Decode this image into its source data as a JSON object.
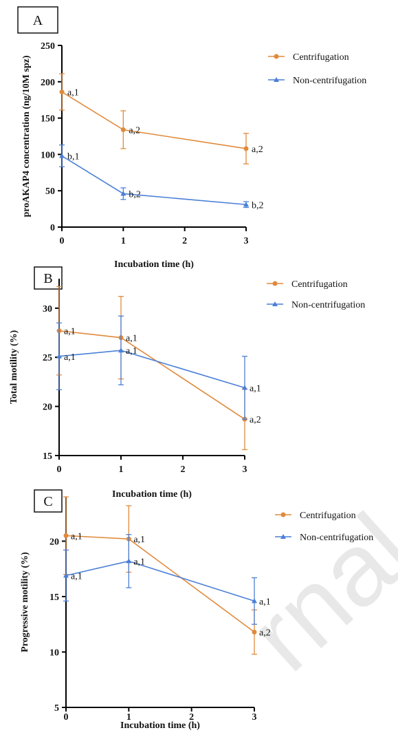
{
  "page": {
    "watermark": "rnal P"
  },
  "colors": {
    "centrifugation": "#e08a3c",
    "non_centrifugation": "#4a7fd6",
    "axis": "#000000"
  },
  "chart_data": [
    {
      "type": "line",
      "panel_label": "A",
      "xlabel": "Incubation time (h)",
      "ylabel": "proAKAP4 concentration (ng/10M spz)",
      "x": [
        0,
        1,
        3
      ],
      "xticks": [
        0,
        1,
        2,
        3
      ],
      "xlim": [
        0,
        3
      ],
      "yticks": [
        0,
        50,
        100,
        150,
        200,
        250
      ],
      "ylim": [
        0,
        250
      ],
      "legend": "top-right",
      "series": [
        {
          "name": "Centrifugation",
          "color": "#e08a3c",
          "marker": "circle",
          "values": [
            186,
            134,
            108
          ],
          "errors": [
            25,
            26,
            21
          ],
          "labels": [
            "a,1",
            "a,2",
            "a,2"
          ]
        },
        {
          "name": "Non-centrifugation",
          "color": "#4a7fd6",
          "marker": "triangle",
          "values": [
            98,
            46,
            31
          ],
          "errors": [
            15,
            8,
            4
          ],
          "labels": [
            "b,1",
            "b,2",
            "b,2"
          ]
        }
      ]
    },
    {
      "type": "line",
      "panel_label": "B",
      "xlabel": "Incubation time (h)",
      "ylabel": "Total motility (%)",
      "x": [
        0,
        1,
        3
      ],
      "xticks": [
        0,
        1,
        2,
        3
      ],
      "xlim": [
        0,
        3
      ],
      "yticks": [
        15,
        20,
        25,
        30
      ],
      "ylim": [
        15,
        33
      ],
      "legend": "top-right",
      "series": [
        {
          "name": "Centrifugation",
          "color": "#e08a3c",
          "marker": "circle",
          "values": [
            27.7,
            27.0,
            18.7
          ],
          "errors": [
            4.5,
            4.2,
            3.1
          ],
          "labels": [
            "a,1",
            "a,1",
            "a,2"
          ]
        },
        {
          "name": "Non-centrifugation",
          "color": "#4a7fd6",
          "marker": "triangle",
          "values": [
            25.1,
            25.7,
            21.9
          ],
          "errors": [
            3.4,
            3.5,
            3.2
          ],
          "labels": [
            "a,1",
            "a,1",
            "a,1"
          ]
        }
      ]
    },
    {
      "type": "line",
      "panel_label": "C",
      "xlabel": "Incubation time (h)",
      "ylabel": "Progressive motility (%)",
      "x": [
        0,
        1,
        3
      ],
      "xticks": [
        0,
        1,
        2,
        3
      ],
      "xlim": [
        0,
        3
      ],
      "yticks": [
        5,
        10,
        15,
        20
      ],
      "ylim": [
        5,
        24
      ],
      "legend": "top-right",
      "series": [
        {
          "name": "Centrifugation",
          "color": "#e08a3c",
          "marker": "circle",
          "values": [
            20.5,
            20.2,
            11.8
          ],
          "errors": [
            3.5,
            3.0,
            2.0
          ],
          "labels": [
            "a,1",
            "a,1",
            "a,2"
          ]
        },
        {
          "name": "Non-centrifugation",
          "color": "#4a7fd6",
          "marker": "triangle",
          "values": [
            16.9,
            18.2,
            14.6
          ],
          "errors": [
            2.3,
            2.4,
            2.1
          ],
          "labels": [
            "a,1",
            "a,1",
            "a,1"
          ]
        }
      ]
    }
  ]
}
